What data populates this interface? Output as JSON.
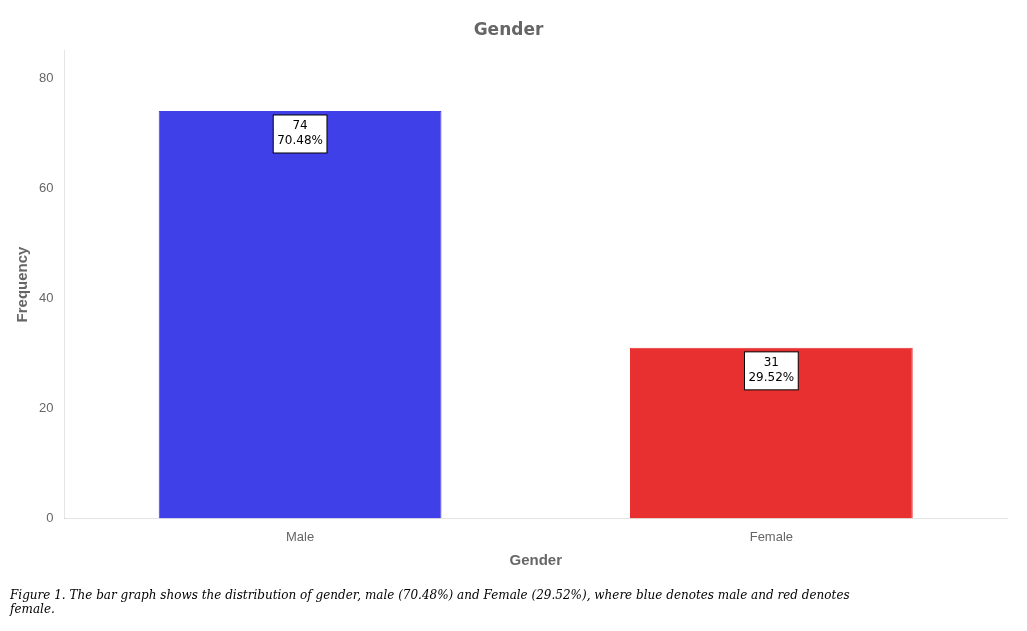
{
  "chart_data": {
    "type": "bar",
    "title": "Gender",
    "xlabel": "Gender",
    "ylabel": "Frequency",
    "categories": [
      "Male",
      "Female"
    ],
    "values": [
      74,
      31
    ],
    "value_labels": [
      "74\n70.48%",
      "31\n29.52%"
    ],
    "data_labels": true,
    "colors": [
      "#4040e8",
      "#e83030"
    ],
    "ylim": [
      0,
      85
    ],
    "yticks": [
      0,
      20,
      40,
      60,
      80
    ],
    "grid": false,
    "caption": "Figure 1. The bar graph shows the distribution of gender, male (70.48%) and Female (29.52%), where blue denotes male and red denotes\nfemale."
  }
}
